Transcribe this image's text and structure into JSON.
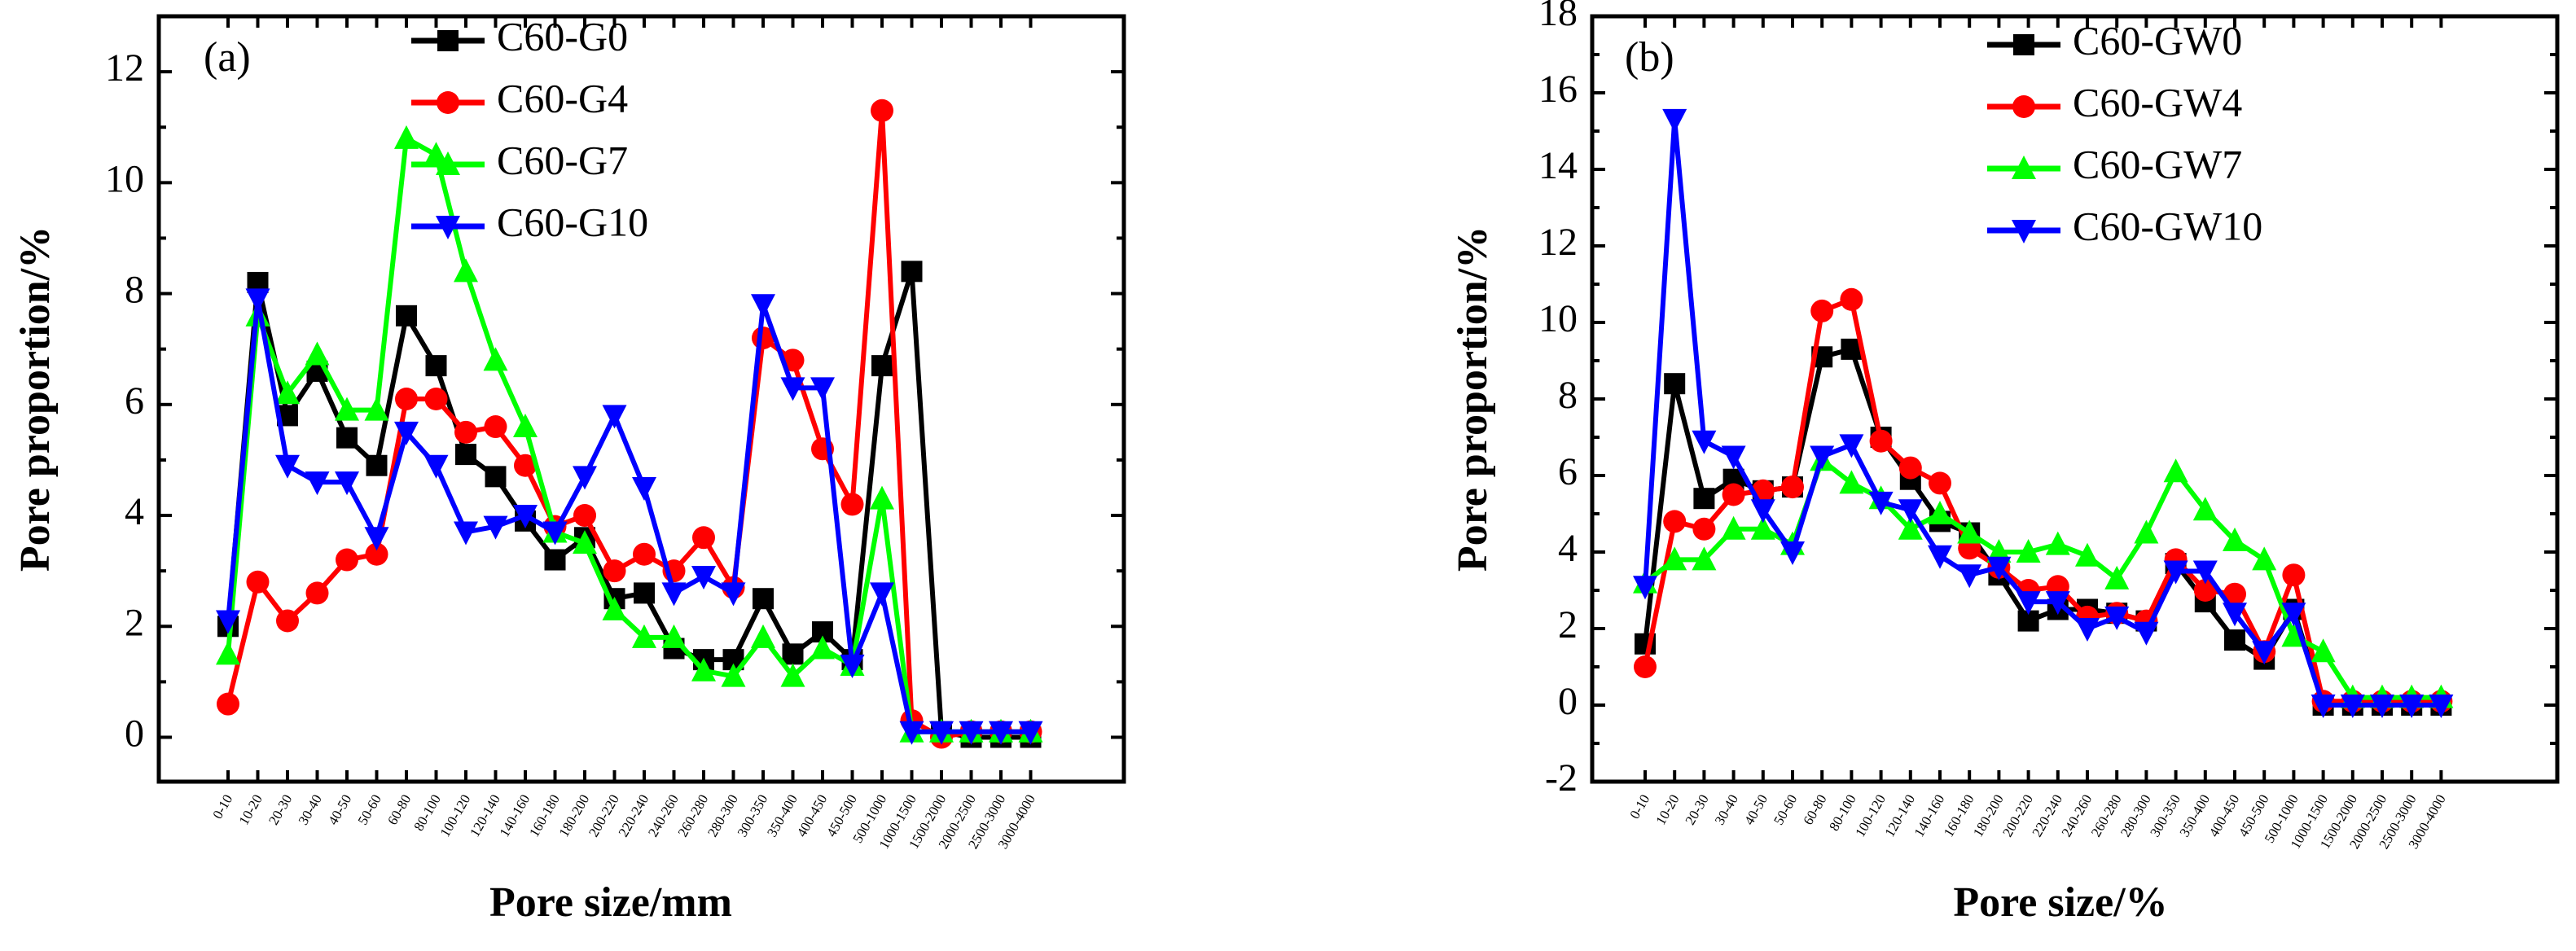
{
  "chart_data": [
    {
      "type": "line",
      "panel_label": "(a)",
      "xlabel": "Pore size/mm",
      "ylabel": "Pore proportion/%",
      "ylim": [
        -0.8,
        13
      ],
      "yticks": [
        0,
        2,
        4,
        6,
        8,
        10,
        12
      ],
      "legend_position": "top-center",
      "categories": [
        "0-10",
        "10-20",
        "20-30",
        "30-40",
        "40-50",
        "50-60",
        "60-80",
        "80-100",
        "100-120",
        "120-140",
        "140-160",
        "160-180",
        "180-200",
        "200-220",
        "220-240",
        "240-260",
        "260-280",
        "280-300",
        "300-350",
        "350-400",
        "400-450",
        "450-500",
        "500-1000",
        "1000-1500",
        "1500-2000",
        "2000-2500",
        "2500-3000",
        "3000-4000"
      ],
      "series": [
        {
          "name": "C60-G0",
          "color": "#000000",
          "marker": "square",
          "values": [
            2.0,
            8.2,
            5.8,
            6.6,
            5.4,
            4.9,
            7.6,
            6.7,
            5.1,
            4.7,
            3.9,
            3.2,
            3.6,
            2.5,
            2.6,
            1.6,
            1.4,
            1.4,
            2.5,
            1.5,
            1.9,
            1.4,
            6.7,
            8.4,
            0.1,
            0.0,
            0.0,
            0.0
          ]
        },
        {
          "name": "C60-G4",
          "color": "#ff0000",
          "marker": "circle",
          "values": [
            0.6,
            2.8,
            2.1,
            2.6,
            3.2,
            3.3,
            6.1,
            6.1,
            5.5,
            5.6,
            4.9,
            3.8,
            4.0,
            3.0,
            3.3,
            3.0,
            3.6,
            2.7,
            7.2,
            6.8,
            5.2,
            4.2,
            11.3,
            0.3,
            0.0,
            0.1,
            0.1,
            0.1
          ]
        },
        {
          "name": "C60-G7",
          "color": "#00ff00",
          "marker": "triangle-up",
          "values": [
            1.5,
            7.6,
            6.2,
            6.9,
            5.9,
            5.9,
            10.8,
            10.5,
            8.4,
            6.8,
            5.6,
            3.7,
            3.5,
            2.3,
            1.8,
            1.8,
            1.2,
            1.1,
            1.8,
            1.1,
            1.6,
            1.3,
            4.3,
            0.1,
            0.1,
            0.1,
            0.1,
            0.1
          ]
        },
        {
          "name": "C60-G10",
          "color": "#0000ff",
          "marker": "triangle-down",
          "values": [
            2.1,
            7.9,
            4.9,
            4.6,
            4.6,
            3.6,
            5.5,
            4.9,
            3.7,
            3.8,
            4.0,
            3.7,
            4.7,
            5.8,
            4.5,
            2.6,
            2.9,
            2.6,
            7.8,
            6.3,
            6.3,
            1.3,
            2.6,
            0.1,
            0.1,
            0.1,
            0.1,
            0.1
          ]
        }
      ]
    },
    {
      "type": "line",
      "panel_label": "(b)",
      "xlabel": "Pore size/%",
      "ylabel": "Pore proportion/%",
      "ylim": [
        -2,
        18
      ],
      "yticks": [
        -2,
        0,
        2,
        4,
        6,
        8,
        10,
        12,
        14,
        16,
        18
      ],
      "legend_position": "top-right",
      "categories": [
        "0-10",
        "10-20",
        "20-30",
        "30-40",
        "40-50",
        "50-60",
        "60-80",
        "80-100",
        "100-120",
        "120-140",
        "140-160",
        "160-180",
        "180-200",
        "200-220",
        "220-240",
        "240-260",
        "260-280",
        "280-300",
        "300-350",
        "350-400",
        "400-450",
        "450-500",
        "500-1000",
        "1000-1500",
        "1500-2000",
        "2000-2500",
        "2500-3000",
        "3000-4000"
      ],
      "series": [
        {
          "name": "C60-GW0",
          "color": "#000000",
          "marker": "square",
          "values": [
            1.6,
            8.4,
            5.4,
            5.9,
            5.6,
            5.7,
            9.1,
            9.3,
            7.0,
            5.9,
            4.8,
            4.5,
            3.4,
            2.2,
            2.5,
            2.5,
            2.4,
            2.2,
            3.7,
            2.7,
            1.7,
            1.2,
            2.5,
            0.0,
            0.0,
            0.0,
            0.0,
            0.0
          ]
        },
        {
          "name": "C60-GW4",
          "color": "#ff0000",
          "marker": "circle",
          "values": [
            1.0,
            4.8,
            4.6,
            5.5,
            5.6,
            5.7,
            10.3,
            10.6,
            6.9,
            6.2,
            5.8,
            4.1,
            3.6,
            3.0,
            3.1,
            2.3,
            2.4,
            2.2,
            3.8,
            3.0,
            2.9,
            1.4,
            3.4,
            0.1,
            0.1,
            0.1,
            0.1,
            0.1
          ]
        },
        {
          "name": "C60-GW7",
          "color": "#00ff00",
          "marker": "triangle-up",
          "values": [
            3.2,
            3.8,
            3.8,
            4.6,
            4.6,
            4.2,
            6.4,
            5.8,
            5.4,
            4.6,
            5.0,
            4.5,
            4.0,
            4.0,
            4.2,
            3.9,
            3.3,
            4.5,
            6.1,
            5.1,
            4.3,
            3.8,
            1.8,
            1.4,
            0.2,
            0.2,
            0.2,
            0.2
          ]
        },
        {
          "name": "C60-GW10",
          "color": "#0000ff",
          "marker": "triangle-down",
          "values": [
            3.1,
            15.3,
            6.9,
            6.5,
            5.1,
            4.0,
            6.5,
            6.8,
            5.3,
            5.1,
            3.9,
            3.4,
            3.6,
            2.7,
            2.7,
            2.0,
            2.3,
            1.9,
            3.5,
            3.5,
            2.4,
            1.4,
            2.4,
            0.0,
            0.0,
            0.0,
            0.0,
            0.0
          ]
        }
      ]
    }
  ]
}
